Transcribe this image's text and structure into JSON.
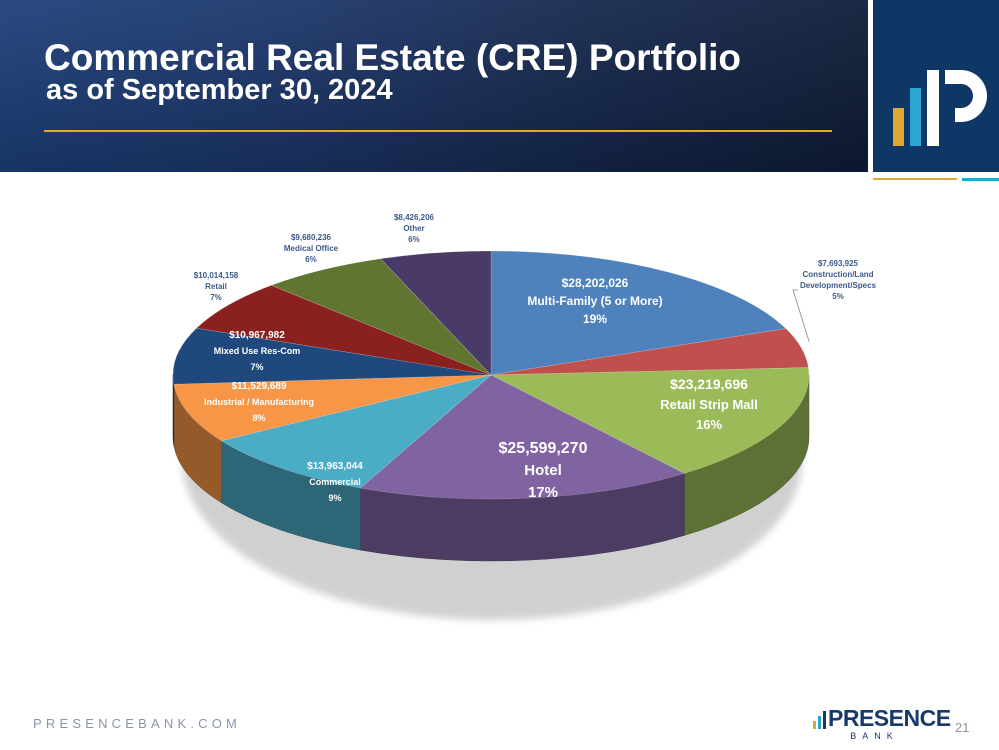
{
  "slide": {
    "title": "Commercial Real Estate (CRE) Portfolio",
    "subtitle": "as of September 30, 2024",
    "footer_url": "PRESENCEBANK.COM",
    "page_number": "21",
    "brand_name": "PRESENCE",
    "brand_sub": "BANK"
  },
  "colors": {
    "header_blue": "#1b3568",
    "logo_blue": "#0f3766",
    "gold": "#e0a830"
  },
  "chart_data": {
    "type": "pie",
    "title": "",
    "slices": [
      {
        "name": "Multi-Family (5 or More)",
        "value": 28202026,
        "value_label": "$28,202,026",
        "percent": "19%",
        "color": "#4f81bd"
      },
      {
        "name": "Construction/Land Development/Specs",
        "value": 7693925,
        "value_label": "$7,693,925",
        "percent": "5%",
        "color": "#c0504d"
      },
      {
        "name": "Retail Strip Mall",
        "value": 23219696,
        "value_label": "$23,219,696",
        "percent": "16%",
        "color": "#9bbb59"
      },
      {
        "name": "Hotel",
        "value": 25599270,
        "value_label": "$25,599,270",
        "percent": "17%",
        "color": "#8064a2"
      },
      {
        "name": "Commercial",
        "value": 13963044,
        "value_label": "$13,963,044",
        "percent": "9%",
        "color": "#4bacc6"
      },
      {
        "name": "Industrial / Manufacturing",
        "value": 11529689,
        "value_label": "$11,529,689",
        "percent": "8%",
        "color": "#f79646"
      },
      {
        "name": "Mixed Use Res-Com",
        "value": 10967982,
        "value_label": "$10,967,982",
        "percent": "7%",
        "color": "#1f497d"
      },
      {
        "name": "Retail",
        "value": 10014158,
        "value_label": "$10,014,158",
        "percent": "7%",
        "color": "#8b2020"
      },
      {
        "name": "Medical Office",
        "value": 9680236,
        "value_label": "$9,680,236",
        "percent": "6%",
        "color": "#5f7530"
      },
      {
        "name": "Other",
        "value": 8426206,
        "value_label": "$8,426,206",
        "percent": "6%",
        "color": "#4a3a68"
      }
    ]
  }
}
